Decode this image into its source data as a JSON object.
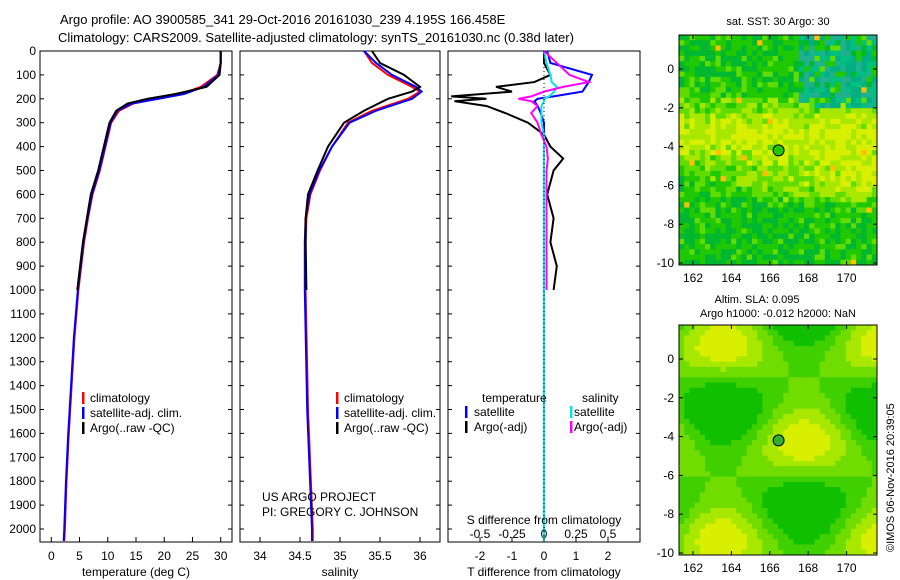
{
  "title_line1": "Argo profile: AO 3900585_341 29-Oct-2016 20161030_239 4.195S 166.458E",
  "title_line2": "Climatology: CARS2009. Satellite-adjusted climatology: synTS_20161030.nc (0.38d later)",
  "credit_line1": "US ARGO PROJECT",
  "credit_line2": "PI: GREGORY C. JOHNSON",
  "imos_stamp": "©IMOS 06-Nov-2016 20:39:05",
  "colors": {
    "climatology": "#ff0000",
    "satellite": "#0000ff",
    "argo": "#000000",
    "sal_sat": "#00e5ee",
    "sal_argo": "#ff00ff"
  },
  "chart_data": [
    {
      "type": "line",
      "xlabel": "temperature (deg C)",
      "xlim": [
        -2,
        32
      ],
      "ylim": [
        2050,
        0
      ],
      "xticks": [
        "0",
        "5",
        "10",
        "15",
        "20",
        "25",
        "30"
      ],
      "xtick_values": [
        0,
        5,
        10,
        15,
        20,
        25,
        30
      ],
      "yticks": [
        "0",
        "100",
        "200",
        "300",
        "400",
        "500",
        "600",
        "700",
        "800",
        "900",
        "1000",
        "1100",
        "1200",
        "1300",
        "1400",
        "1500",
        "1600",
        "1700",
        "1800",
        "1900",
        "2000"
      ],
      "legend": [
        "climatology",
        "satellite-adj. clim.",
        "Argo(..raw -QC)"
      ],
      "depth": [
        0,
        50,
        100,
        150,
        180,
        200,
        220,
        250,
        300,
        400,
        500,
        600,
        700,
        800,
        900,
        1000,
        1200,
        1400,
        1600,
        1800,
        2000,
        2050
      ],
      "series": [
        {
          "name": "climatology",
          "values": [
            30,
            30,
            29.4,
            26.5,
            23,
            18.5,
            14.5,
            12,
            10.6,
            9.6,
            8.6,
            7.3,
            6.5,
            5.8,
            5.3,
            4.8,
            4.1,
            3.6,
            3.1,
            2.7,
            2.4,
            2.3
          ]
        },
        {
          "name": "satellite-adj. clim.",
          "values": [
            30,
            30,
            29.6,
            27,
            23.5,
            19,
            14.2,
            11.7,
            10.5,
            9.5,
            8.5,
            7.2,
            6.4,
            5.7,
            5.2,
            4.7,
            4.0,
            3.5,
            3.0,
            2.6,
            2.3,
            2.2
          ]
        },
        {
          "name": "Argo(..raw -QC)",
          "values": [
            30,
            30,
            29.8,
            27.5,
            22,
            17,
            13.5,
            11.5,
            10.3,
            9.3,
            8.3,
            7.0,
            6.3,
            5.6,
            5.1,
            4.6
          ]
        }
      ]
    },
    {
      "type": "line",
      "xlabel": "salinity",
      "xlim": [
        33.75,
        36.25
      ],
      "ylim": [
        2050,
        0
      ],
      "xticks": [
        "34",
        "34.5",
        "35",
        "35.5",
        "36"
      ],
      "xtick_values": [
        34,
        34.5,
        35,
        35.5,
        36
      ],
      "legend": [
        "climatology",
        "satellite-adj. clim.",
        "Argo(..raw -QC)"
      ],
      "depth": [
        0,
        50,
        100,
        150,
        170,
        200,
        250,
        300,
        400,
        500,
        600,
        700,
        800,
        1000,
        1500,
        2000,
        2050
      ],
      "series": [
        {
          "name": "climatology",
          "values": [
            35.3,
            35.4,
            35.6,
            35.9,
            36.0,
            35.85,
            35.4,
            35.1,
            34.9,
            34.75,
            34.63,
            34.58,
            34.57,
            34.57,
            34.6,
            34.66,
            34.66
          ]
        },
        {
          "name": "satellite-adj. clim.",
          "values": [
            35.3,
            35.45,
            35.65,
            35.95,
            36.02,
            35.9,
            35.45,
            35.12,
            34.9,
            34.74,
            34.62,
            34.57,
            34.56,
            34.56,
            34.59,
            34.65,
            34.65
          ]
        },
        {
          "name": "Argo(..raw -QC)",
          "values": [
            35.4,
            35.5,
            35.8,
            36.0,
            35.9,
            35.6,
            35.3,
            35.05,
            34.85,
            34.72,
            34.6,
            34.57,
            34.57,
            34.58
          ]
        }
      ]
    },
    {
      "type": "line",
      "xlabel": "T difference from climatology",
      "xlabel2": "S difference from climatology",
      "xlim": [
        -3,
        3
      ],
      "ylim": [
        2050,
        0
      ],
      "xticks": [
        "-2",
        "-1",
        "0",
        "1",
        "2"
      ],
      "xtick_values": [
        -2,
        -1,
        0,
        1,
        2
      ],
      "xticks2": [
        "-0.5",
        "-0.25",
        "0",
        "0.25",
        "0.5"
      ],
      "xtick2_values": [
        -0.5,
        -0.25,
        0,
        0.25,
        0.5
      ],
      "legend_headers": [
        "temperature",
        "salinity"
      ],
      "legend": [
        "satellite",
        "Argo(-adj)",
        "satellite",
        "Argo(-adj)"
      ],
      "depth": [
        0,
        50,
        100,
        130,
        150,
        170,
        190,
        200,
        210,
        230,
        260,
        300,
        350,
        400,
        450,
        500,
        600,
        700,
        800,
        900,
        1000
      ],
      "series": [
        {
          "name": "temperature satellite",
          "values": [
            0.1,
            0.2,
            1.5,
            1.4,
            1.3,
            1.2,
            0.3,
            -0.2,
            -0.3,
            -0.2,
            -0.1,
            0,
            0,
            0,
            0,
            0,
            0,
            0,
            0,
            0,
            0
          ]
        },
        {
          "name": "temperature Argo(-adj)",
          "values": [
            0,
            0,
            0.2,
            -0.3,
            -1.5,
            -1.0,
            -2.9,
            -1.8,
            -2.8,
            -1.8,
            -1.2,
            -0.5,
            0,
            0.2,
            0.6,
            0.3,
            0.1,
            0.3,
            0.2,
            0.4,
            0.3
          ]
        },
        {
          "name": "salinity satellite",
          "values": [
            0,
            0.02,
            0.05,
            0.06,
            0.1,
            0.08,
            0.04,
            0,
            0,
            -0.02,
            -0.02,
            -0.02,
            0,
            0,
            0,
            0,
            0,
            0,
            0,
            0,
            0
          ]
        },
        {
          "name": "salinity Argo(-adj)",
          "values": [
            0,
            0.1,
            0.2,
            0.35,
            0.15,
            0.0,
            -0.1,
            -0.2,
            -0.1,
            -0.05,
            -0.1,
            -0.05,
            -0.02,
            0.02,
            0.03,
            0.02,
            0.02,
            0.02,
            0.02,
            0.02,
            0.02
          ]
        }
      ]
    },
    {
      "type": "heatmap",
      "title": "sat. SST: 30 Argo: 30",
      "xticks": [
        "162",
        "164",
        "166",
        "168",
        "170"
      ],
      "yticks": [
        "0",
        "-2",
        "-4",
        "-6",
        "-8",
        "-10"
      ],
      "argo_position": [
        166.458,
        -4.195
      ]
    },
    {
      "type": "heatmap",
      "title_line1": "Altim. SLA: 0.095",
      "title_line2": "Argo h1000: -0.012 h2000: NaN",
      "xticks": [
        "162",
        "164",
        "166",
        "168",
        "170"
      ],
      "yticks": [
        "0",
        "-2",
        "-4",
        "-6",
        "-8",
        "-10"
      ],
      "argo_position": [
        166.458,
        -4.195
      ]
    }
  ]
}
